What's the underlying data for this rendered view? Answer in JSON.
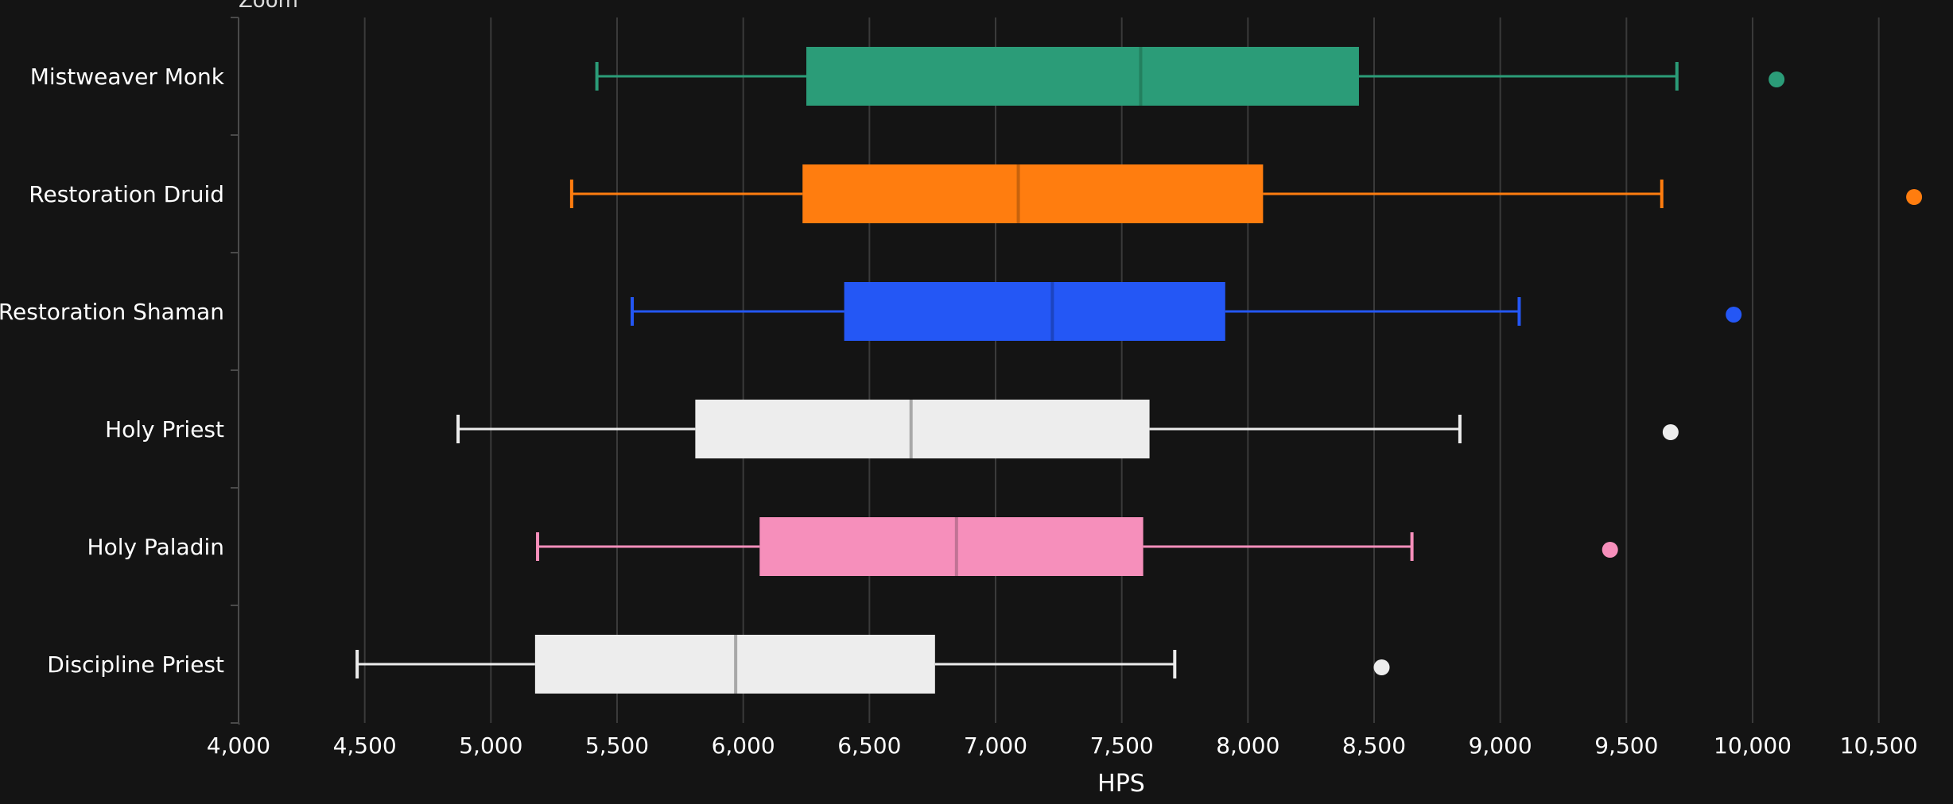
{
  "zoom_label": "Zoom",
  "chart_data": {
    "type": "boxplot",
    "orientation": "horizontal",
    "xlabel": "HPS",
    "xlim": [
      4000,
      10700
    ],
    "x_ticks": [
      4000,
      4500,
      5000,
      5500,
      6000,
      6500,
      7000,
      7500,
      8000,
      8500,
      9000,
      9500,
      10000,
      10500
    ],
    "x_tick_labels": [
      "4,000",
      "4,500",
      "5,000",
      "5,500",
      "6,000",
      "6,500",
      "7,000",
      "7,500",
      "8,000",
      "8,500",
      "9,000",
      "9,500",
      "10,000",
      "10,500"
    ],
    "grid": true,
    "series": [
      {
        "name": "Mistweaver Monk",
        "color": "#2b9c78",
        "median_color": "#23805f",
        "whisker_low": 5420,
        "q1": 6250,
        "median": 7575,
        "q3": 8440,
        "whisker_high": 9700,
        "outliers": [
          10095
        ]
      },
      {
        "name": "Restoration Druid",
        "color": "#ff7d0f",
        "median_color": "#c8620c",
        "whisker_low": 5320,
        "q1": 6235,
        "median": 7090,
        "q3": 8060,
        "whisker_high": 9640,
        "outliers": [
          10640
        ]
      },
      {
        "name": "Restoration Shaman",
        "color": "#2457f5",
        "median_color": "#1c44c0",
        "whisker_low": 5560,
        "q1": 6400,
        "median": 7225,
        "q3": 7910,
        "whisker_high": 9075,
        "outliers": [
          9925
        ]
      },
      {
        "name": "Holy Priest",
        "color": "#ededed",
        "median_color": "#a8a8a8",
        "whisker_low": 4870,
        "q1": 5810,
        "median": 6665,
        "q3": 7610,
        "whisker_high": 8840,
        "outliers": [
          9675
        ]
      },
      {
        "name": "Holy Paladin",
        "color": "#f68fbb",
        "median_color": "#c07394",
        "whisker_low": 5185,
        "q1": 6065,
        "median": 6845,
        "q3": 7585,
        "whisker_high": 8650,
        "outliers": [
          9435
        ]
      },
      {
        "name": "Discipline Priest",
        "color": "#ededed",
        "median_color": "#a8a8a8",
        "whisker_low": 4470,
        "q1": 5175,
        "median": 5970,
        "q3": 6760,
        "whisker_high": 7710,
        "outliers": [
          8530
        ]
      }
    ]
  }
}
